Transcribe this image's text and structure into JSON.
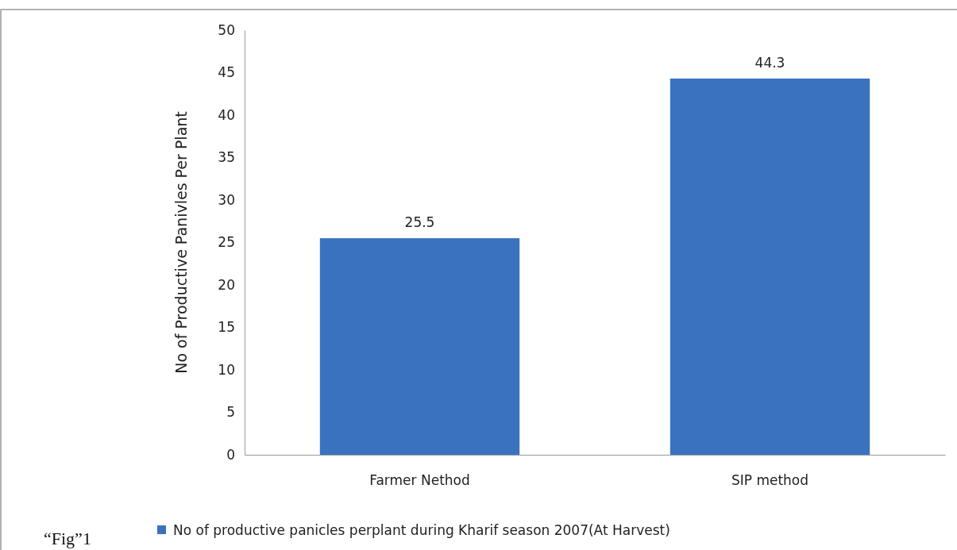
{
  "chart_data": {
    "type": "bar",
    "ylabel": "No of Productive Panivles Per Plant",
    "categories": [
      "Farmer Nethod",
      "SIP method"
    ],
    "series": [
      {
        "name": "No of productive panicles perplant during Kharif season 2007(At Harvest)",
        "color": "#3a72c0",
        "values": [
          25.5,
          44.3
        ]
      }
    ],
    "ylim": [
      0,
      50
    ],
    "yticks": [
      0,
      5,
      10,
      15,
      20,
      25,
      30,
      35,
      40,
      45,
      50
    ],
    "data_labels": true,
    "legend": "bottom",
    "grid": false,
    "annotations": [
      "“Fig”1"
    ]
  }
}
